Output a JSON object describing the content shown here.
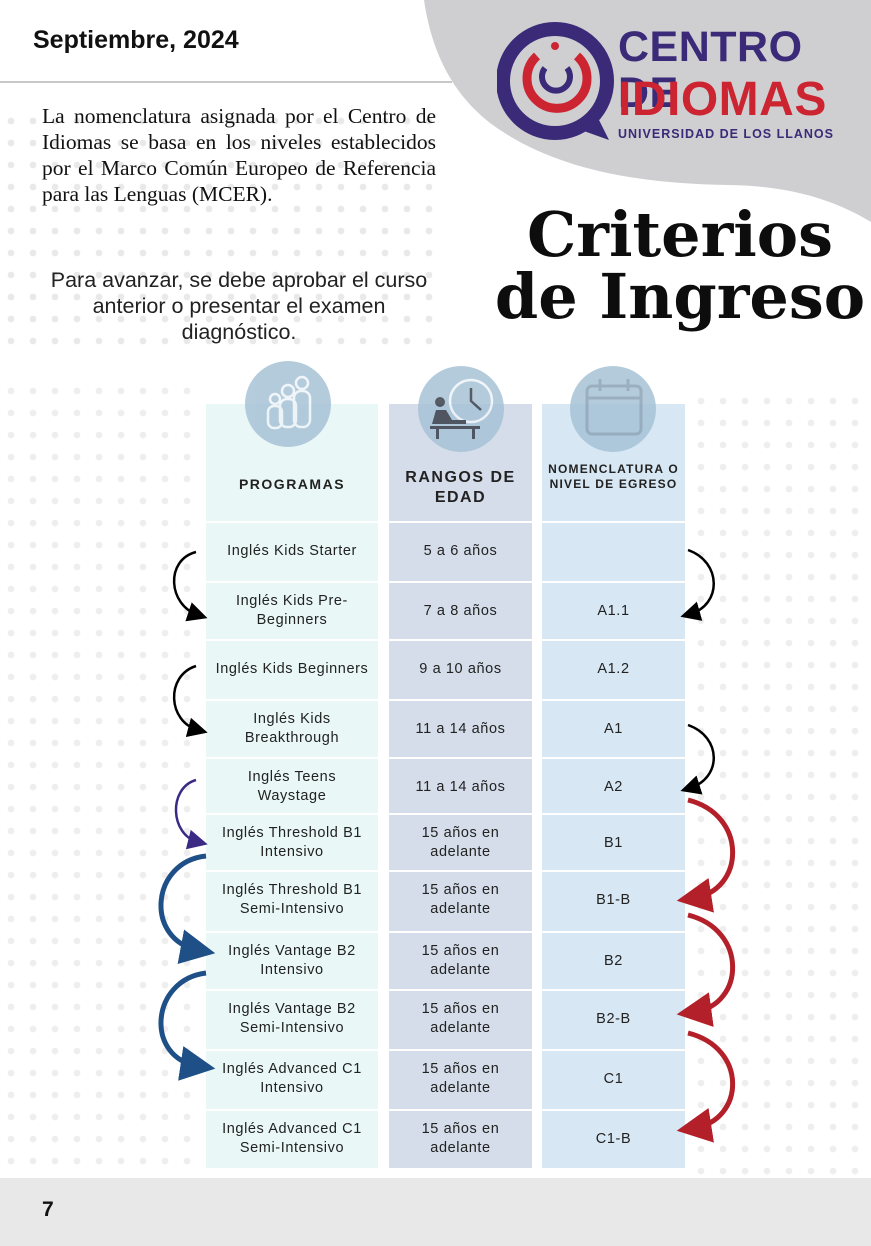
{
  "header": {
    "date": "Septiembre, 2024",
    "logo_line1": "CENTRO DE",
    "logo_line2": "IDIOMAS",
    "logo_line3": "UNIVERSIDAD DE LOS LLANOS"
  },
  "intro_text": "La nomenclatura asignada por el Centro de Idiomas se basa en los niveles establecidos por el Marco Común Europeo de Referencia para las Lenguas (MCER).",
  "advance_text": "Para avanzar, se debe aprobar el curso anterior o presentar el examen diagnóstico.",
  "title": {
    "line1": "Criterios",
    "line2": "de Ingreso"
  },
  "table": {
    "headers": [
      "PROGRAMAS",
      "RANGOS DE EDAD",
      "NOMENCLATURA O NIVEL DE EGRESO"
    ],
    "icons": [
      "family-icon",
      "clock-desk-icon",
      "calendar-icon"
    ],
    "rows": [
      {
        "program": "Inglés Kids Starter",
        "age": "5 a 6 años",
        "level": ""
      },
      {
        "program": "Inglés Kids Pre-Beginners",
        "age": "7 a 8 años",
        "level": "A1.1"
      },
      {
        "program": "Inglés Kids Beginners",
        "age": "9 a 10 años",
        "level": "A1.2"
      },
      {
        "program": "Inglés Kids Breakthrough",
        "age": "11 a 14 años",
        "level": "A1"
      },
      {
        "program": "Inglés Teens Waystage",
        "age": "11 a 14 años",
        "level": "A2"
      },
      {
        "program": "Inglés Threshold B1 Intensivo",
        "age": "15 años en adelante",
        "level": "B1"
      },
      {
        "program": "Inglés Threshold B1 Semi-Intensivo",
        "age": "15 años en adelante",
        "level": "B1-B"
      },
      {
        "program": "Inglés Vantage B2 Intensivo",
        "age": "15 años en adelante",
        "level": "B2"
      },
      {
        "program": "Inglés Vantage B2 Semi-Intensivo",
        "age": "15 años en adelante",
        "level": "B2-B"
      },
      {
        "program": "Inglés Advanced C1 Intensivo",
        "age": "15 años en adelante",
        "level": "C1"
      },
      {
        "program": "Inglés Advanced C1 Semi-Intensivo",
        "age": "15 años en adelante",
        "level": "C1-B"
      }
    ]
  },
  "colors": {
    "brand_purple": "#3a2a78",
    "brand_red": "#cc2431",
    "arrow_blue": "#1e4f86",
    "arrow_purple": "#3b2a85",
    "arrow_red": "#b3202a"
  },
  "page_number": "7"
}
